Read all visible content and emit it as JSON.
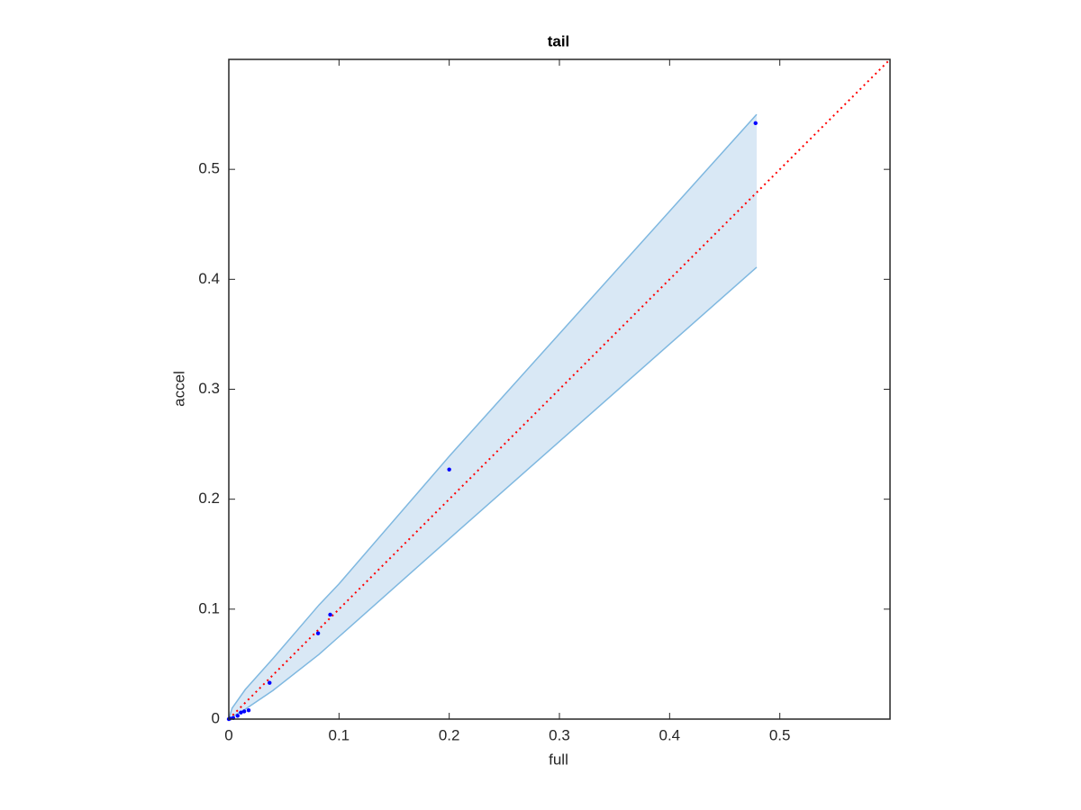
{
  "chart_data": {
    "type": "scatter",
    "title": "tail",
    "x_label": "full",
    "y_label": "accel",
    "xlim": [
      0,
      0.6
    ],
    "ylim": [
      0,
      0.6
    ],
    "xticks": [
      0,
      0.1,
      0.2,
      0.3,
      0.4,
      0.5
    ],
    "yticks": [
      0,
      0.1,
      0.2,
      0.3,
      0.4,
      0.5
    ],
    "band": {
      "color": "#7fb8e0",
      "fill": "#d9e8f5",
      "x": [
        0,
        0.003,
        0.015,
        0.04,
        0.082,
        0.1,
        0.2,
        0.479
      ],
      "upper": [
        0,
        0.01,
        0.027,
        0.055,
        0.104,
        0.123,
        0.239,
        0.55
      ],
      "lower": [
        0,
        0.002,
        0.009,
        0.026,
        0.059,
        0.075,
        0.164,
        0.411
      ]
    },
    "reference": {
      "color": "#ff0000",
      "x": [
        0,
        0.6
      ],
      "y": [
        0,
        0.6
      ]
    },
    "points": {
      "color": "#0000ff",
      "x": [
        0.478,
        0.2,
        0.092,
        0.081,
        0.037,
        0.018,
        0.014,
        0.011,
        0.008,
        0.004,
        0.001,
        0
      ],
      "y": [
        0.542,
        0.227,
        0.095,
        0.078,
        0.033,
        0.008,
        0.007,
        0.006,
        0.003,
        0.001,
        0.0005,
        0
      ]
    }
  }
}
